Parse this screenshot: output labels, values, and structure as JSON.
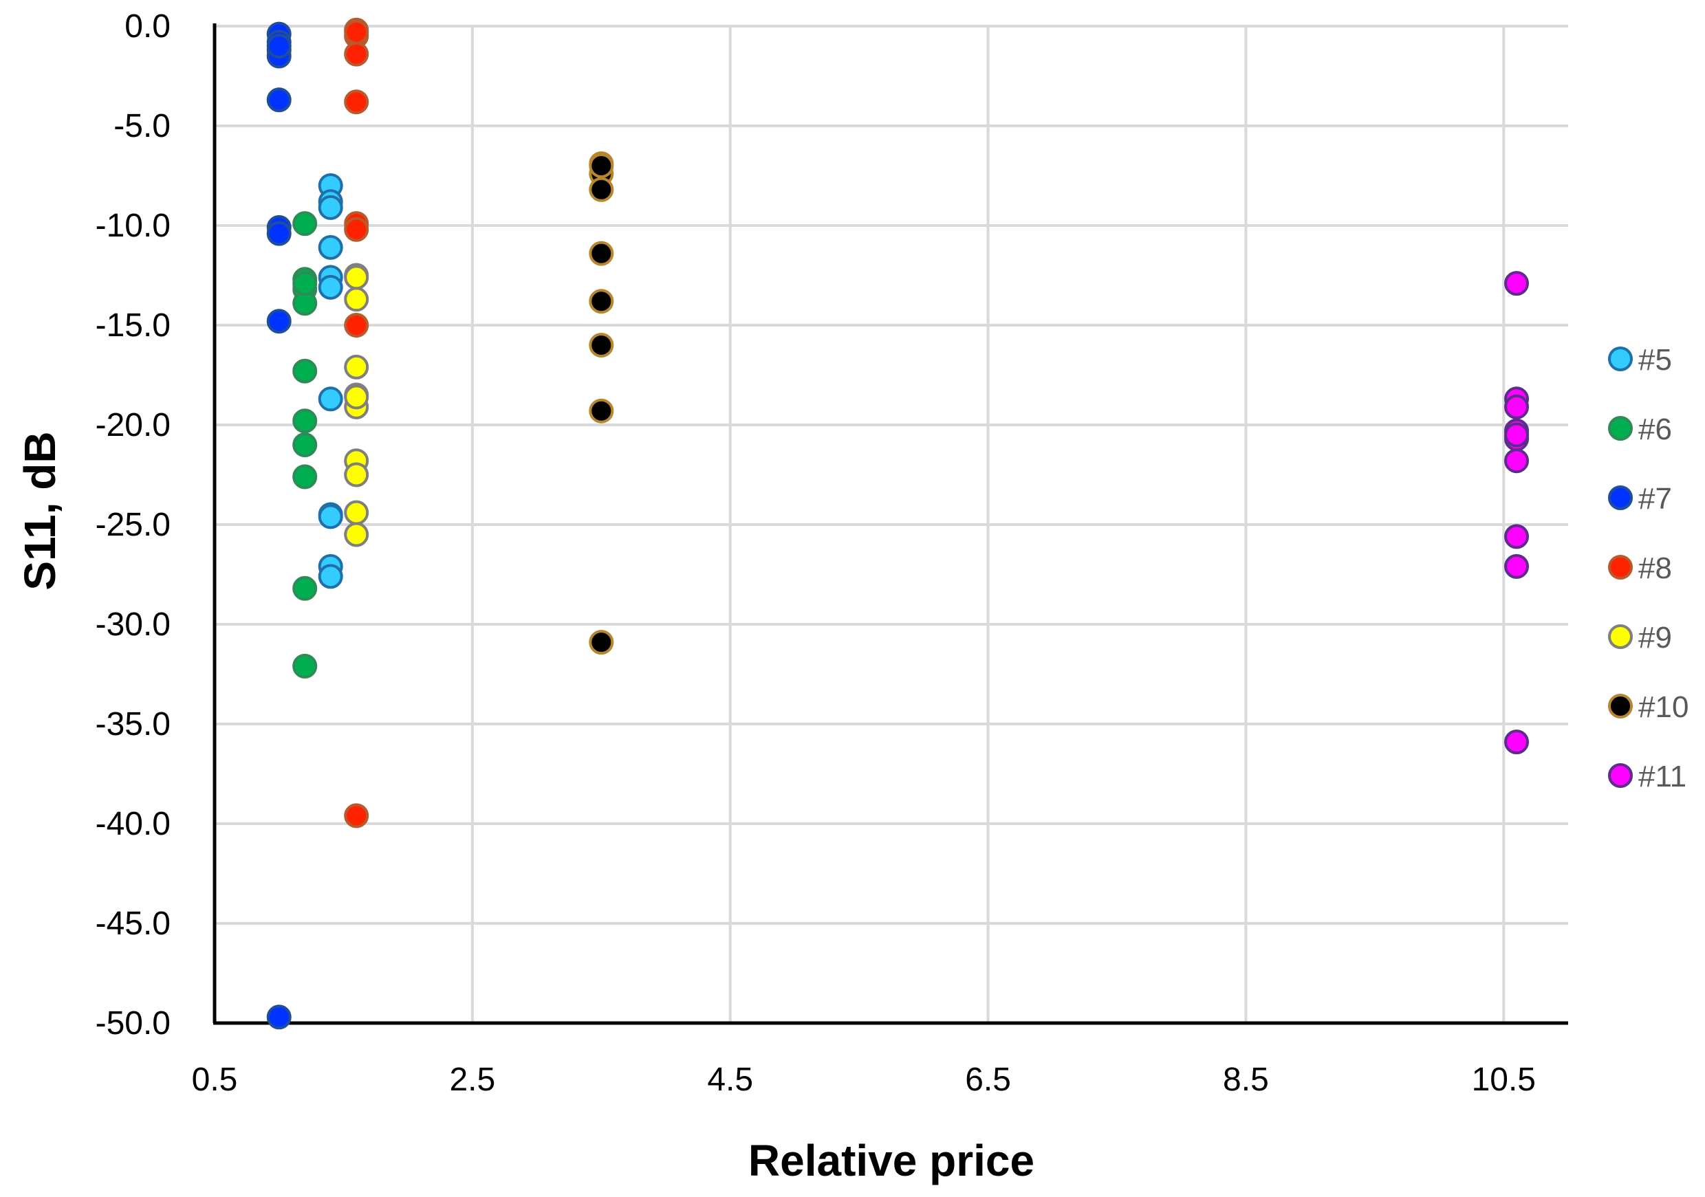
{
  "chart_data": {
    "type": "scatter",
    "title": "",
    "xlabel": "Relative price",
    "ylabel": "S11, dB",
    "xlim": [
      0.5,
      11.0
    ],
    "ylim": [
      -50.0,
      0.0
    ],
    "x_ticks": [
      "0.5",
      "2.5",
      "4.5",
      "6.5",
      "8.5",
      "10.5"
    ],
    "y_ticks": [
      "0.0",
      "-5.0",
      "-10.0",
      "-15.0",
      "-20.0",
      "-25.0",
      "-30.0",
      "-35.0",
      "-40.0",
      "-45.0",
      "-50.0"
    ],
    "x_tick_values": [
      0.5,
      2.5,
      4.5,
      6.5,
      8.5,
      10.5
    ],
    "y_tick_values": [
      0,
      -5,
      -10,
      -15,
      -20,
      -25,
      -30,
      -35,
      -40,
      -45,
      -50
    ],
    "grid": true,
    "legend_position": "right",
    "series": [
      {
        "name": "#5",
        "fill": "#33ccff",
        "stroke": "#1f6fa8",
        "x": [
          1.4,
          1.4,
          1.4,
          1.4,
          1.4,
          1.4,
          1.4,
          1.4,
          1.4,
          1.4,
          1.4
        ],
        "y": [
          -8.0,
          -8.8,
          -9.1,
          -11.1,
          -12.6,
          -13.1,
          -18.7,
          -24.5,
          -27.1,
          -27.6,
          -24.6
        ]
      },
      {
        "name": "#6",
        "fill": "#00b050",
        "stroke": "#2e8b57",
        "x": [
          1.2,
          1.2,
          1.2,
          1.2,
          1.2,
          1.2,
          1.2,
          1.2,
          1.2,
          1.2,
          1.2
        ],
        "y": [
          -9.9,
          -12.7,
          -13.2,
          -13.9,
          -17.3,
          -19.8,
          -21.0,
          -22.6,
          -28.2,
          -32.1,
          -12.9
        ]
      },
      {
        "name": "#7",
        "fill": "#0033ff",
        "stroke": "#1f4e9a",
        "x": [
          1.0,
          1.0,
          1.0,
          1.0,
          1.0,
          1.0,
          1.0,
          1.0,
          1.0,
          1.0
        ],
        "y": [
          -0.4,
          -0.8,
          -1.2,
          -1.5,
          -3.7,
          -10.1,
          -10.4,
          -14.8,
          -49.7,
          -1.0
        ]
      },
      {
        "name": "#8",
        "fill": "#ff2200",
        "stroke": "#b85a2e",
        "x": [
          1.6,
          1.6,
          1.6,
          1.6,
          1.6,
          1.6,
          1.6,
          1.6,
          1.6
        ],
        "y": [
          -0.2,
          -0.5,
          -1.4,
          -3.8,
          -9.9,
          -10.2,
          -15.0,
          -39.6,
          -0.3
        ]
      },
      {
        "name": "#9",
        "fill": "#ffff00",
        "stroke": "#7f7f7f",
        "x": [
          1.6,
          1.6,
          1.6,
          1.6,
          1.6,
          1.6,
          1.6,
          1.6,
          1.6,
          1.6,
          1.6
        ],
        "y": [
          -12.5,
          -13.7,
          -17.1,
          -18.5,
          -19.1,
          -21.8,
          -22.5,
          -24.4,
          -25.5,
          -12.6,
          -18.6
        ]
      },
      {
        "name": "#10",
        "fill": "#000000",
        "stroke": "#b8862e",
        "x": [
          3.5,
          3.5,
          3.5,
          3.5,
          3.5,
          3.5,
          3.5,
          3.5,
          3.5
        ],
        "y": [
          -6.9,
          -7.4,
          -8.2,
          -11.4,
          -13.8,
          -16.0,
          -19.3,
          -30.9,
          -7.0
        ]
      },
      {
        "name": "#11",
        "fill": "#ff00ff",
        "stroke": "#5b2e8b",
        "x": [
          10.6,
          10.6,
          10.6,
          10.6,
          10.6,
          10.6,
          10.6,
          10.6,
          10.6,
          10.6
        ],
        "y": [
          -12.9,
          -18.7,
          -19.1,
          -20.3,
          -20.7,
          -21.8,
          -25.6,
          -27.1,
          -35.9,
          -20.5
        ]
      }
    ]
  }
}
